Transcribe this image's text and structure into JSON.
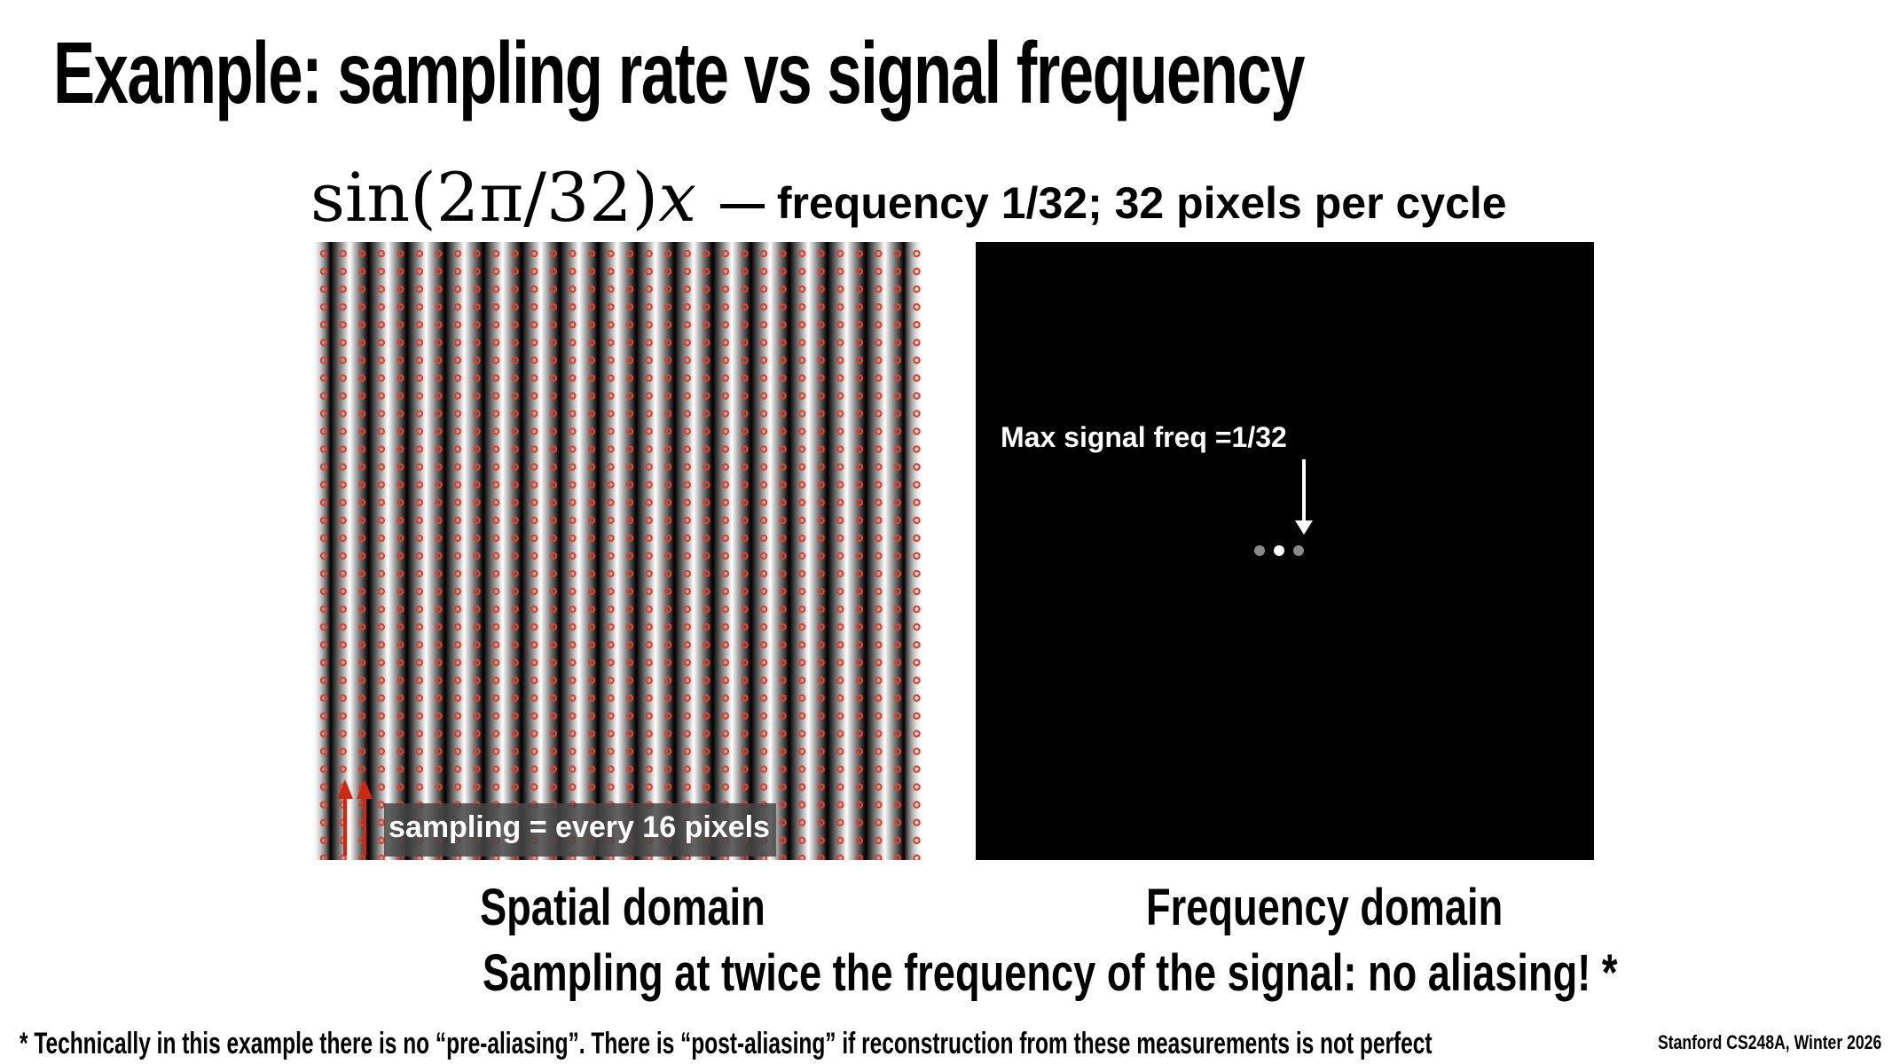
{
  "slide": {
    "title": "Example: sampling rate vs signal frequency",
    "formula": {
      "fn": "sin",
      "arg": "(2π/32)",
      "var": "x"
    },
    "formula_description": "— frequency 1/32; 32 pixels per cycle",
    "spatial": {
      "label": "Spatial domain",
      "sampling_label": "sampling = every 16 pixels",
      "signal_period_pixels": 32,
      "sampling_interval_pixels": 16,
      "sample_color": "#d9442f",
      "arrow_color": "#cc2a10"
    },
    "frequency": {
      "label": "Frequency domain",
      "annotation": "Max signal freq =1/32"
    },
    "conclusion": "Sampling at twice the frequency of the signal: no aliasing! *",
    "footnote": "* Technically in this example there is no “pre-aliasing”.  There is “post-aliasing” if reconstruction from these measurements is not perfect",
    "credit": "Stanford CS248A, Winter 2026"
  }
}
